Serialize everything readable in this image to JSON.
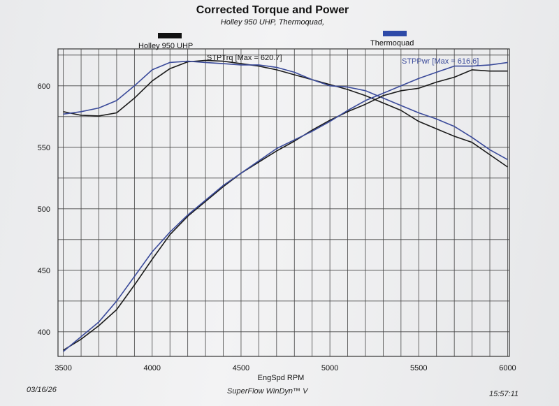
{
  "header": {
    "title": "Corrected Torque and Power",
    "subtitle": "Holley 950 UHP, Thermoquad,"
  },
  "footer": {
    "date": "03/16/26",
    "software": "SuperFlow WinDyn™ V",
    "time": "15:57:11"
  },
  "colors": {
    "holley": "#1a1a1a",
    "thermoquad": "#3a4a9a",
    "grid": "#444444"
  },
  "chart_data": {
    "type": "line",
    "title": "Corrected Torque and Power",
    "xlabel": "EngSpd RPM",
    "ylabel": "",
    "xlim": [
      3470,
      6010
    ],
    "ylim": [
      380,
      630
    ],
    "x_grid": [
      3500,
      3600,
      3700,
      3800,
      3900,
      4000,
      4100,
      4200,
      4300,
      4400,
      4500,
      4600,
      4700,
      4800,
      4900,
      5000,
      5100,
      5200,
      5300,
      5400,
      5500,
      5600,
      5700,
      5800,
      5900,
      6000
    ],
    "x_ticks": [
      3500,
      4000,
      4500,
      5000,
      5500,
      6000
    ],
    "y_grid": [
      400,
      425,
      450,
      475,
      500,
      525,
      550,
      575,
      600,
      625
    ],
    "y_ticks": [
      400,
      450,
      500,
      550,
      600
    ],
    "legend": [
      {
        "label": "Holley 950 UHP",
        "color": "#1a1a1a"
      },
      {
        "label": "Thermoquad",
        "color": "#3a4a9a"
      }
    ],
    "annotations": {
      "torque": "STPTrq [Max = 620.7]",
      "power": "STPPwr [Max = 616.6]"
    },
    "series": [
      {
        "name": "Holley 950 UHP Torque",
        "color": "#1a1a1a",
        "x": [
          3500,
          3600,
          3700,
          3800,
          3900,
          4000,
          4100,
          4200,
          4300,
          4400,
          4500,
          4600,
          4700,
          4800,
          4900,
          5000,
          5100,
          5200,
          5300,
          5400,
          5500,
          5600,
          5700,
          5800,
          5900,
          6000
        ],
        "values": [
          579,
          576,
          575.5,
          578,
          590,
          604,
          614,
          619.5,
          620.7,
          620,
          618,
          616,
          613,
          609,
          605,
          601,
          597,
          592,
          586,
          580,
          571,
          565,
          559,
          554,
          544,
          534
        ]
      },
      {
        "name": "Thermoquad Torque",
        "color": "#3a4a9a",
        "x": [
          3500,
          3600,
          3700,
          3800,
          3900,
          4000,
          4100,
          4200,
          4300,
          4400,
          4500,
          4600,
          4700,
          4800,
          4900,
          5000,
          5100,
          5200,
          5300,
          5400,
          5500,
          5600,
          5700,
          5800,
          5900,
          6000
        ],
        "values": [
          577,
          579,
          582,
          588,
          600,
          613,
          619,
          620,
          619,
          618,
          617,
          617,
          615,
          611,
          605,
          600,
          599,
          596,
          590,
          584,
          578,
          573,
          567,
          558,
          548,
          540
        ]
      },
      {
        "name": "Holley 950 UHP Power",
        "color": "#1a1a1a",
        "x": [
          3500,
          3600,
          3700,
          3800,
          3900,
          4000,
          4100,
          4200,
          4300,
          4400,
          4500,
          4600,
          4700,
          4800,
          4900,
          5000,
          5100,
          5200,
          5300,
          5400,
          5500,
          5600,
          5700,
          5800,
          5900,
          6000
        ],
        "values": [
          385,
          394,
          405,
          418,
          438,
          459,
          479,
          494,
          506,
          518,
          529,
          538,
          547,
          555,
          564,
          572,
          579,
          585,
          592,
          596,
          598,
          603,
          607,
          613,
          612,
          612
        ]
      },
      {
        "name": "Thermoquad Power",
        "color": "#3a4a9a",
        "x": [
          3500,
          3600,
          3700,
          3800,
          3900,
          4000,
          4100,
          4200,
          4300,
          4400,
          4500,
          4600,
          4700,
          4800,
          4900,
          5000,
          5100,
          5200,
          5300,
          5400,
          5500,
          5600,
          5700,
          5800,
          5900,
          6000
        ],
        "values": [
          384,
          396,
          408,
          425,
          445,
          465,
          481,
          495,
          507,
          519,
          529,
          539,
          549,
          556,
          563,
          571,
          580,
          588,
          594,
          600,
          606,
          611,
          616,
          616,
          617,
          619
        ]
      }
    ]
  }
}
